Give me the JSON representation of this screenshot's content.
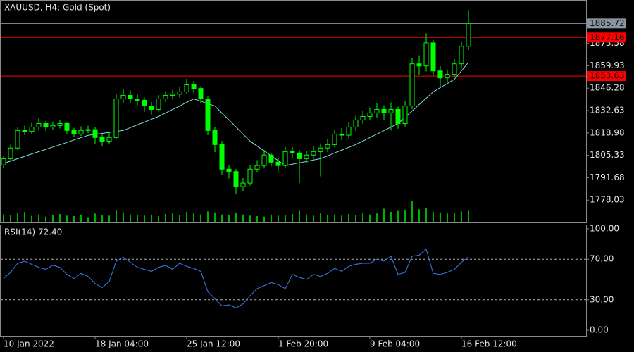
{
  "chart_data": {
    "type": "candlestick",
    "title": "XAUUSD, H4:  Gold (Spot)",
    "color": "#00ff00",
    "categories": [
      "10 Jan 2022",
      null,
      null,
      null,
      null,
      null,
      null,
      null,
      null,
      null,
      null,
      null,
      null,
      "18 Jan 04:00",
      null,
      null,
      null,
      null,
      null,
      null,
      null,
      null,
      null,
      null,
      null,
      null,
      "25 Jan 12:00",
      null,
      null,
      null,
      null,
      null,
      null,
      null,
      null,
      null,
      null,
      null,
      null,
      "1 Feb 20:00",
      null,
      null,
      null,
      null,
      null,
      null,
      null,
      null,
      null,
      null,
      null,
      null,
      "9 Feb 04:00",
      null,
      null,
      null,
      null,
      null,
      null,
      null,
      null,
      null,
      null,
      null,
      null,
      "16 Feb 12:00",
      null
    ],
    "open": [
      1799.5,
      1803.3,
      1809.8,
      1820.5,
      1819.9,
      1822.6,
      1824.7,
      1822.6,
      1823.5,
      1824.7,
      1820.5,
      1818.3,
      1820.5,
      1821.0,
      1816.2,
      1814.0,
      1816.2,
      1839.7,
      1841.9,
      1839.7,
      1838.9,
      1835.4,
      1833.3,
      1839.7,
      1841.9,
      1842.6,
      1844.0,
      1848.3,
      1846.1,
      1839.7,
      1820.5,
      1811.9,
      1796.9,
      1795.4,
      1786.2,
      1788.4,
      1796.9,
      1799.1,
      1805.5,
      1801.2,
      1799.1,
      1807.6,
      1806.8,
      1803.3,
      1805.5,
      1807.6,
      1809.8,
      1811.9,
      1818.3,
      1817.6,
      1822.6,
      1826.9,
      1829.0,
      1831.2,
      1833.3,
      1831.2,
      1833.3,
      1824.7,
      1835.4,
      1861.1,
      1859.8,
      1873.9,
      1856.8,
      1852.5,
      1854.7,
      1861.1,
      1871.8
    ],
    "high": [
      1805.0,
      1811.9,
      1822.3,
      1823.4,
      1825.1,
      1827.9,
      1826.2,
      1825.9,
      1826.8,
      1825.8,
      1822.1,
      1823.0,
      1823.3,
      1822.4,
      1817.9,
      1819.1,
      1842.4,
      1845.6,
      1844.8,
      1842.5,
      1840.6,
      1837.9,
      1842.1,
      1844.5,
      1845.3,
      1846.9,
      1852.0,
      1850.6,
      1847.5,
      1841.2,
      1822.8,
      1814.1,
      1799.6,
      1797.0,
      1791.5,
      1799.3,
      1802.4,
      1808.7,
      1807.0,
      1803.5,
      1810.3,
      1810.5,
      1808.5,
      1808.0,
      1810.9,
      1812.6,
      1815.2,
      1820.8,
      1821.9,
      1825.4,
      1829.5,
      1832.7,
      1834.5,
      1836.9,
      1835.8,
      1837.6,
      1835.0,
      1838.2,
      1864.8,
      1866.3,
      1879.7,
      1875.6,
      1859.7,
      1857.6,
      1864.0,
      1874.9,
      1893.9
    ],
    "low": [
      1797.8,
      1802.0,
      1808.6,
      1817.6,
      1818.4,
      1821.1,
      1820.3,
      1820.8,
      1821.7,
      1818.6,
      1816.4,
      1817.2,
      1818.9,
      1812.5,
      1810.8,
      1812.3,
      1815.0,
      1837.3,
      1837.0,
      1835.8,
      1831.9,
      1830.2,
      1832.0,
      1837.8,
      1839.4,
      1840.5,
      1842.8,
      1843.4,
      1836.9,
      1817.7,
      1807.3,
      1793.5,
      1791.2,
      1781.8,
      1783.6,
      1786.9,
      1794.8,
      1797.3,
      1798.6,
      1795.9,
      1797.5,
      1803.9,
      1788.4,
      1800.6,
      1803.1,
      1792.5,
      1807.4,
      1810.1,
      1814.7,
      1815.8,
      1820.3,
      1824.6,
      1826.8,
      1828.4,
      1827.1,
      1820.4,
      1821.6,
      1822.9,
      1833.6,
      1854.2,
      1856.5,
      1853.9,
      1847.3,
      1850.1,
      1852.8,
      1858.6,
      1869.5
    ],
    "close": [
      1803.3,
      1809.8,
      1820.5,
      1819.9,
      1822.6,
      1824.7,
      1822.6,
      1823.5,
      1824.7,
      1820.5,
      1818.3,
      1820.5,
      1821.0,
      1816.2,
      1814.0,
      1816.2,
      1839.7,
      1841.9,
      1839.7,
      1838.9,
      1835.4,
      1833.3,
      1839.7,
      1841.9,
      1842.6,
      1844.0,
      1848.3,
      1846.1,
      1839.7,
      1820.5,
      1811.9,
      1796.9,
      1795.4,
      1786.2,
      1788.4,
      1796.9,
      1799.1,
      1805.5,
      1801.2,
      1799.1,
      1807.6,
      1806.8,
      1803.3,
      1805.5,
      1807.6,
      1809.8,
      1811.9,
      1818.3,
      1817.6,
      1822.6,
      1826.9,
      1829.0,
      1831.2,
      1833.3,
      1831.2,
      1833.3,
      1824.7,
      1835.4,
      1861.1,
      1859.8,
      1873.9,
      1856.8,
      1852.5,
      1854.7,
      1861.1,
      1871.8,
      1885.72
    ],
    "ma": {
      "color": "#80e0e0",
      "values": [
        1800.4,
        1801.8,
        1803.3,
        1804.7,
        1806.2,
        1807.6,
        1809.0,
        1810.4,
        1811.8,
        1813.2,
        1814.7,
        1816.1,
        1817.5,
        1818.1,
        1818.7,
        1819.3,
        1819.9,
        1820.5,
        1822.2,
        1823.9,
        1825.6,
        1827.3,
        1829.0,
        1831.1,
        1833.3,
        1835.4,
        1837.6,
        1839.7,
        1838.3,
        1836.8,
        1835.4,
        1831.1,
        1826.9,
        1822.6,
        1818.3,
        1814.0,
        1811.0,
        1808.0,
        1805.1,
        1802.1,
        1799.1,
        1799.9,
        1800.8,
        1801.6,
        1802.5,
        1803.3,
        1805.0,
        1806.8,
        1808.5,
        1810.2,
        1811.9,
        1814.0,
        1816.2,
        1818.3,
        1820.4,
        1822.6,
        1824.7,
        1828.6,
        1832.4,
        1836.3,
        1840.1,
        1844.0,
        1846.6,
        1849.1,
        1851.7,
        1856.8,
        1862.0
      ]
    },
    "volume": {
      "color": "#00b000",
      "values": [
        30,
        28,
        35,
        40,
        25,
        30,
        22,
        28,
        32,
        26,
        24,
        30,
        20,
        34,
        28,
        26,
        45,
        38,
        30,
        28,
        26,
        30,
        24,
        32,
        36,
        28,
        40,
        34,
        30,
        42,
        38,
        30,
        28,
        36,
        30,
        26,
        24,
        22,
        30,
        26,
        28,
        32,
        44,
        30,
        26,
        34,
        28,
        30,
        26,
        32,
        28,
        36,
        30,
        34,
        52,
        40,
        44,
        48,
        80,
        50,
        55,
        40,
        38,
        34,
        36,
        42,
        44
      ]
    },
    "ylim": [
      1764.4,
      1899.6
    ],
    "yticks": [
      1778.03,
      1791.68,
      1805.33,
      1818.98,
      1832.63,
      1846.28,
      1859.93,
      1873.58
    ],
    "hlines": [
      {
        "value": 1885.72,
        "color": "#8895a0"
      },
      {
        "value": 1877.16,
        "color": "#ff0000"
      },
      {
        "value": 1853.63,
        "color": "#ff0000"
      }
    ],
    "rsi": {
      "title": "RSI(14) 72.40",
      "color": "#3a7df0",
      "values": [
        51,
        57,
        66,
        68,
        65,
        62,
        60,
        64,
        62,
        55,
        51,
        56,
        53,
        46,
        42,
        48,
        68,
        72,
        67,
        62,
        60,
        58,
        62,
        64,
        60,
        66,
        63,
        61,
        58,
        38,
        31,
        24,
        25,
        22,
        26,
        34,
        41,
        44,
        47,
        45,
        41,
        55,
        52,
        50,
        55,
        53,
        56,
        61,
        58,
        63,
        65,
        66,
        66,
        70,
        68,
        73,
        55,
        57,
        73,
        74,
        80,
        56,
        55,
        57,
        60,
        67,
        72.4
      ],
      "ylim": [
        0,
        100
      ],
      "yticks": [
        {
          "value": 0,
          "label": "0.00"
        },
        {
          "value": 30,
          "label": "30.00"
        },
        {
          "value": 70,
          "label": "70.00"
        },
        {
          "value": 100,
          "label": "100.00"
        }
      ],
      "levels": [
        70,
        30
      ]
    }
  }
}
